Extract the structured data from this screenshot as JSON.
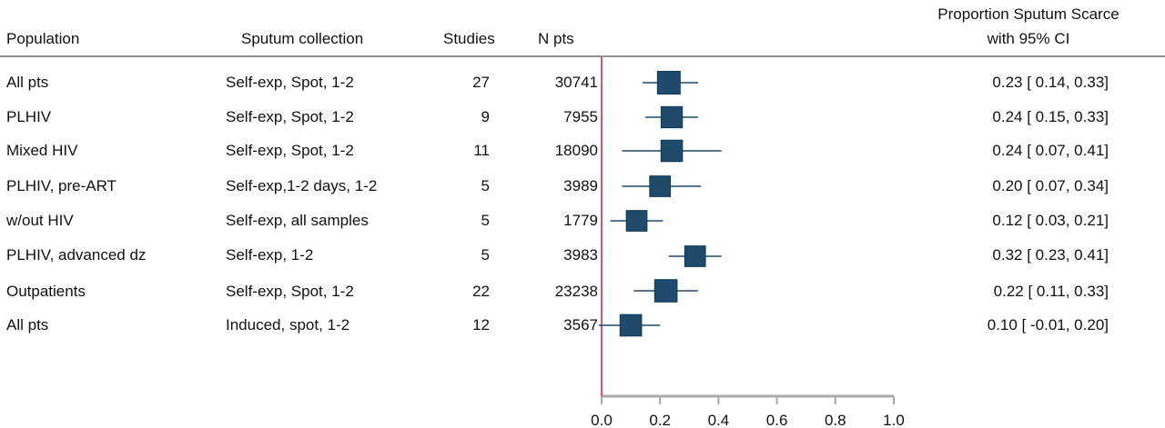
{
  "headers": {
    "population": "Population",
    "collection": "Sputum collection",
    "studies": "Studies",
    "npts": "N pts",
    "estimate_line1": "Proportion Sputum Scarce",
    "estimate_line2": "with 95% CI"
  },
  "rows": [
    {
      "population": "All pts",
      "collection": "Self-exp, Spot, 1-2",
      "studies": "27",
      "npts": "30741",
      "ci_text": "0.23 [  0.14,  0.33]"
    },
    {
      "population": "PLHIV",
      "collection": "Self-exp, Spot, 1-2",
      "studies": "9",
      "npts": "7955",
      "ci_text": "0.24 [  0.15,  0.33]"
    },
    {
      "population": "Mixed HIV",
      "collection": "Self-exp, Spot, 1-2",
      "studies": "11",
      "npts": "18090",
      "ci_text": "0.24 [  0.07,  0.41]"
    },
    {
      "population": "PLHIV, pre-ART",
      "collection": "Self-exp,1-2 days, 1-2",
      "studies": "5",
      "npts": "3989",
      "ci_text": "0.20 [  0.07,  0.34]"
    },
    {
      "population": "w/out HIV",
      "collection": "Self-exp, all samples",
      "studies": "5",
      "npts": "1779",
      "ci_text": "0.12 [  0.03,  0.21]"
    },
    {
      "population": "PLHIV, advanced dz",
      "collection": "Self-exp, 1-2",
      "studies": "5",
      "npts": "3983",
      "ci_text": "0.32 [  0.23,  0.41]"
    },
    {
      "population": "Outpatients",
      "collection": "Self-exp, Spot, 1-2",
      "studies": "22",
      "npts": "23238",
      "ci_text": "0.22 [  0.11,  0.33]"
    },
    {
      "population": "All pts",
      "collection": "Induced, spot, 1-2",
      "studies": "12",
      "npts": "3567",
      "ci_text": "0.10 [ -0.01,  0.20]"
    }
  ],
  "chart_data": {
    "type": "forest",
    "x_ticks": [
      "0.0",
      "0.2",
      "0.4",
      "0.6",
      "0.8",
      "1.0"
    ],
    "xlim": [
      0,
      1
    ],
    "reference_line": 0,
    "colors": {
      "marker": "#1f4a6b",
      "ci_line": "#1f4a6b",
      "reference": "#cc1f3a",
      "axis": "#aaaaaa"
    },
    "series": [
      {
        "label": "All pts",
        "estimate": 0.23,
        "lower": 0.14,
        "upper": 0.33,
        "studies": 27
      },
      {
        "label": "PLHIV",
        "estimate": 0.24,
        "lower": 0.15,
        "upper": 0.33,
        "studies": 9
      },
      {
        "label": "Mixed HIV",
        "estimate": 0.24,
        "lower": 0.07,
        "upper": 0.41,
        "studies": 11
      },
      {
        "label": "PLHIV, pre-ART",
        "estimate": 0.2,
        "lower": 0.07,
        "upper": 0.34,
        "studies": 5
      },
      {
        "label": "w/out HIV",
        "estimate": 0.12,
        "lower": 0.03,
        "upper": 0.21,
        "studies": 5
      },
      {
        "label": "PLHIV, advanced dz",
        "estimate": 0.32,
        "lower": 0.23,
        "upper": 0.41,
        "studies": 5
      },
      {
        "label": "Outpatients",
        "estimate": 0.22,
        "lower": 0.11,
        "upper": 0.33,
        "studies": 22
      },
      {
        "label": "All pts",
        "estimate": 0.1,
        "lower": -0.01,
        "upper": 0.2,
        "studies": 12
      }
    ]
  }
}
